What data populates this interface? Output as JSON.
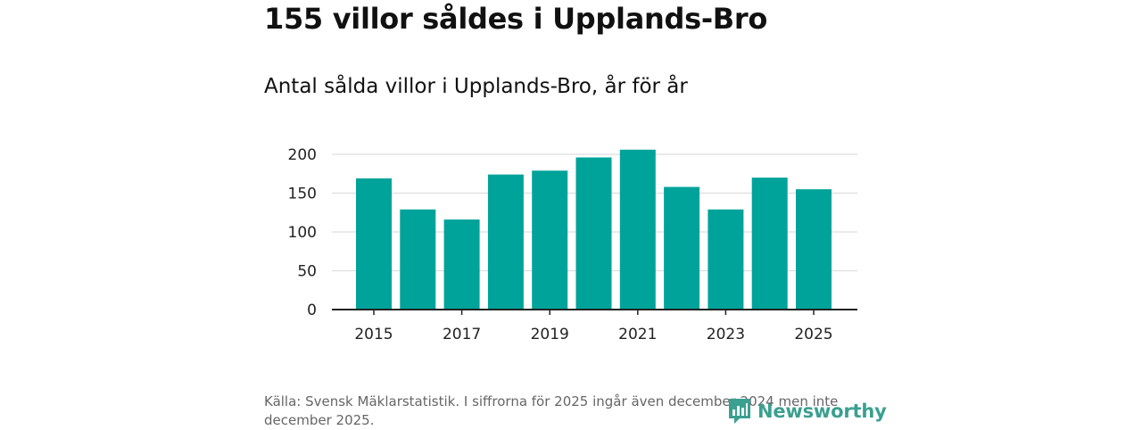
{
  "title": "155 villor såldes i Upplands-Bro",
  "subtitle": "Antal sålda villor i Upplands-Bro, år för år",
  "source": "Källa: Svensk Mäklarstatistik. I siffrorna för 2025 ingår även december 2024 men inte december 2025.",
  "logo": {
    "text": "Newsworthy",
    "color": "#3aa090"
  },
  "chart_data": {
    "type": "bar",
    "title": "Antal sålda villor i Upplands-Bro, år för år",
    "xlabel": "",
    "ylabel": "",
    "categories": [
      "2015",
      "2016",
      "2017",
      "2018",
      "2019",
      "2020",
      "2021",
      "2022",
      "2023",
      "2024",
      "2025"
    ],
    "values": [
      169,
      129,
      116,
      174,
      179,
      196,
      206,
      158,
      129,
      170,
      155
    ],
    "ylim": [
      0,
      200
    ],
    "yticks": [
      "0",
      "50",
      "100",
      "150",
      "200"
    ],
    "xticks": [
      "2015",
      "2017",
      "2019",
      "2021",
      "2023",
      "2025"
    ],
    "grid": true,
    "bar_color": "#00a39a",
    "grid_color": "#dddddd",
    "axis_color": "#222222"
  }
}
